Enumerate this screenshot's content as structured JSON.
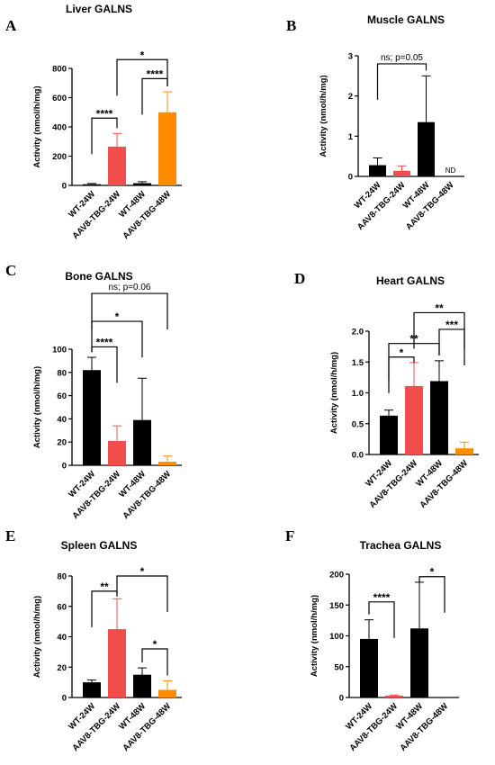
{
  "colors": {
    "wt": "#000000",
    "tbg24": "#f24d4d",
    "tbg48": "#ff8c00"
  },
  "chart_data": [
    {
      "letter": "A",
      "title": "Liver GALNS",
      "type": "bar",
      "ylabel": "Activity (nmol/h/mg)",
      "ylim": [
        0,
        800
      ],
      "yticks": [
        0,
        200,
        400,
        600,
        800
      ],
      "categories": [
        "WT-24W",
        "AAV8-TBG-24W",
        "WT-48W",
        "AAV8-TBG-48W"
      ],
      "values": [
        8,
        265,
        15,
        500
      ],
      "errors": [
        5,
        90,
        10,
        140
      ],
      "comparisons": [
        {
          "from": 0,
          "to": 1,
          "y": 460,
          "label": "****"
        },
        {
          "from": 2,
          "to": 3,
          "y": 730,
          "label": "****"
        },
        {
          "from": 1,
          "to": 3,
          "y": 860,
          "label": "*"
        }
      ]
    },
    {
      "letter": "B",
      "title": "Muscle GALNS",
      "type": "bar",
      "ylabel": "Activity (nmol/h/mg)",
      "ylim": [
        0,
        3
      ],
      "yticks": [
        0,
        1,
        2,
        3
      ],
      "categories": [
        "WT-24W",
        "AAV8-TBG-24W",
        "WT-48W",
        "AAV8-TBG-48W"
      ],
      "values": [
        0.28,
        0.14,
        1.35,
        0
      ],
      "errors": [
        0.18,
        0.12,
        1.15,
        0
      ],
      "value_labels": [
        "",
        "",
        "",
        "ND"
      ],
      "comparisons": [
        {
          "from": 0,
          "to": 2,
          "y": 2.8,
          "label": "ns; p=0.05"
        }
      ]
    },
    {
      "letter": "C",
      "title": "Bone GALNS",
      "type": "bar",
      "ylabel": "Activity (nmol/h/mg)",
      "ylim": [
        0,
        100
      ],
      "yticks": [
        0,
        20,
        40,
        60,
        80,
        100
      ],
      "categories": [
        "WT-24W",
        "AAV8-TBG-24W",
        "WT-48W",
        "AAV8-TBG-48W"
      ],
      "values": [
        82,
        21,
        39,
        3
      ],
      "errors": [
        11,
        13,
        36,
        5
      ],
      "comparisons": [
        {
          "from": 0,
          "to": 1,
          "y": 102,
          "label": "****"
        },
        {
          "from": 0,
          "to": 2,
          "y": 124,
          "label": "*"
        },
        {
          "from": 0,
          "to": 3,
          "y": 148,
          "label": "ns; p=0.06"
        }
      ]
    },
    {
      "letter": "D",
      "title": "Heart  GALNS",
      "type": "bar",
      "ylabel": "Activity (nmol/h/mg)",
      "ylim": [
        0,
        2.0
      ],
      "yticks": [
        0.0,
        0.5,
        1.0,
        1.5,
        2.0
      ],
      "tick_decimals": 1,
      "categories": [
        "WT-24W",
        "AAV8-TBG-24W",
        "WT-48W",
        "AAV8-TBG-48W"
      ],
      "values": [
        0.63,
        1.11,
        1.19,
        0.1
      ],
      "errors": [
        0.09,
        0.38,
        0.33,
        0.1
      ],
      "comparisons": [
        {
          "from": 0,
          "to": 1,
          "y": 1.58,
          "label": "*"
        },
        {
          "from": 0,
          "to": 2,
          "y": 1.8,
          "label": "**"
        },
        {
          "from": 2,
          "to": 3,
          "y": 2.03,
          "label": "***"
        },
        {
          "from": 1,
          "to": 3,
          "y": 2.3,
          "label": "**"
        }
      ]
    },
    {
      "letter": "E",
      "title": "Spleen  GALNS",
      "type": "bar",
      "ylabel": "Activity (nmol/h/mg)",
      "ylim": [
        0,
        80
      ],
      "yticks": [
        0,
        20,
        40,
        60,
        80
      ],
      "categories": [
        "WT-24W",
        "AAV8-TBG-24W",
        "WT-48W",
        "AAV8-TBG-48W"
      ],
      "values": [
        10,
        45,
        15,
        5
      ],
      "errors": [
        1.5,
        20,
        4.5,
        6
      ],
      "comparisons": [
        {
          "from": 0,
          "to": 1,
          "y": 70,
          "label": "**"
        },
        {
          "from": 2,
          "to": 3,
          "y": 32,
          "label": "*"
        },
        {
          "from": 1,
          "to": 3,
          "y": 80,
          "label": "*"
        }
      ]
    },
    {
      "letter": "F",
      "title": "Trachea GALNS",
      "type": "bar",
      "ylabel": "Activity (nmol/h/mg)",
      "ylim": [
        0,
        200
      ],
      "yticks": [
        0,
        50,
        100,
        150,
        200
      ],
      "categories": [
        "WT-24W",
        "AAV8-TBG-24W",
        "WT-48W",
        "AAV8-TBG-48W"
      ],
      "values": [
        95,
        3,
        112,
        0
      ],
      "errors": [
        31,
        1,
        75,
        0
      ],
      "comparisons": [
        {
          "from": 0,
          "to": 1,
          "y": 155,
          "label": "****"
        },
        {
          "from": 2,
          "to": 3,
          "y": 196,
          "label": "*"
        }
      ]
    }
  ]
}
